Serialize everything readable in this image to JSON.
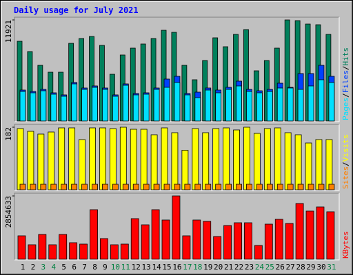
{
  "title": "Daily usage for July 2021",
  "legend_separator": "/",
  "chart_data": [
    {
      "type": "bar",
      "series": [
        {
          "name": "Hits",
          "color": "#00805c",
          "values": [
            9407,
            8191,
            6569,
            5758,
            5758,
            9164,
            9732,
            9975,
            8921,
            5515,
            7786,
            8597,
            9083,
            9732,
            10705,
            10462,
            6569,
            4866,
            7137,
            9813,
            8759,
            10219,
            10786,
            5920,
            7137,
            8597,
            11921,
            11840,
            11435,
            11354,
            10219
          ]
        },
        {
          "name": "Files",
          "color": "#0040ff",
          "values": [
            3650,
            3487,
            3731,
            3325,
            3082,
            4542,
            3893,
            4136,
            3893,
            3082,
            4379,
            3244,
            3325,
            3893,
            4947,
            5272,
            3244,
            3406,
            3893,
            3650,
            3974,
            4704,
            3731,
            3568,
            3731,
            4461,
            3974,
            5596,
            5596,
            6569,
            5272
          ]
        },
        {
          "name": "Pages",
          "color": "#00e0ff",
          "values": [
            3487,
            3325,
            3568,
            3163,
            2920,
            4379,
            3731,
            3974,
            3731,
            2920,
            4217,
            3082,
            3163,
            3731,
            3974,
            4542,
            3082,
            2757,
            3650,
            3325,
            3731,
            4136,
            3487,
            3325,
            3487,
            3893,
            3893,
            3731,
            4136,
            4866,
            4542
          ]
        }
      ],
      "ylim": [
        0,
        11921
      ],
      "yticks": [
        11921
      ]
    },
    {
      "type": "bar",
      "series": [
        {
          "name": "Visits",
          "color": "#ffff00",
          "values": [
            178,
            170,
            162,
            168,
            180,
            180,
            146,
            180,
            180,
            178,
            182,
            176,
            176,
            160,
            180,
            166,
            115,
            178,
            166,
            178,
            180,
            174,
            182,
            164,
            178,
            180,
            166,
            160,
            136,
            146,
            146
          ]
        },
        {
          "name": "Sites",
          "color": "#ff8000",
          "values": [
            16,
            16,
            16,
            16,
            16,
            16,
            16,
            16,
            16,
            16,
            16,
            16,
            16,
            16,
            16,
            16,
            16,
            16,
            16,
            16,
            16,
            16,
            16,
            16,
            16,
            16,
            16,
            16,
            16,
            16,
            16
          ]
        }
      ],
      "ylim": [
        0,
        182
      ],
      "yticks": [
        182
      ]
    },
    {
      "type": "bar",
      "categories": [
        "1",
        "2",
        "3",
        "4",
        "5",
        "6",
        "7",
        "8",
        "9",
        "10",
        "11",
        "12",
        "13",
        "14",
        "15",
        "16",
        "17",
        "18",
        "19",
        "20",
        "21",
        "22",
        "23",
        "24",
        "25",
        "26",
        "27",
        "28",
        "29",
        "30",
        "31"
      ],
      "label_colors": [
        "#000000",
        "#000000",
        "#008040",
        "#008040",
        "#000000",
        "#000000",
        "#000000",
        "#000000",
        "#000000",
        "#008040",
        "#008040",
        "#000000",
        "#000000",
        "#000000",
        "#000000",
        "#000000",
        "#008040",
        "#008040",
        "#000000",
        "#000000",
        "#000000",
        "#000000",
        "#000000",
        "#008040",
        "#008040",
        "#000000",
        "#000000",
        "#000000",
        "#000000",
        "#000000",
        "#008040"
      ],
      "series": [
        {
          "name": "KBytes",
          "color": "#ff0000",
          "values": [
            1054986,
            651609,
            1117044,
            651609,
            1117044,
            744696,
            682638,
            2234088,
            930870,
            651609,
            682638,
            1830711,
            1551450,
            2234088,
            1768653,
            2854633,
            1054986,
            1768653,
            1706595,
            1023957,
            1520421,
            1644537,
            1644537,
            620580,
            1582479,
            1799682,
            1613508,
            2513349,
            2172030,
            2358204,
            2141001
          ]
        }
      ],
      "ylim": [
        0,
        2854633
      ],
      "yticks": [
        2854633
      ]
    }
  ]
}
